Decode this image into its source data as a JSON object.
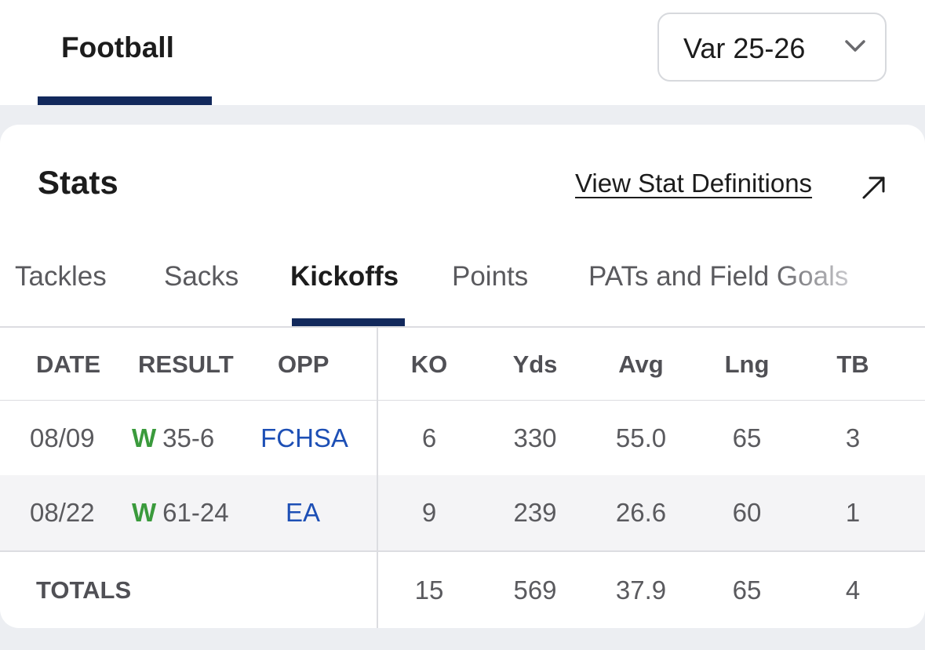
{
  "sport_tab": {
    "label": "Football"
  },
  "season_select": {
    "value": "Var 25-26"
  },
  "stats": {
    "title": "Stats",
    "definitions_link": "View Stat Definitions"
  },
  "tabs": [
    {
      "label": "Tackles",
      "active": false
    },
    {
      "label": "Sacks",
      "active": false
    },
    {
      "label": "Kickoffs",
      "active": true
    },
    {
      "label": "Points",
      "active": false
    },
    {
      "label": "PATs and Field Goals",
      "active": false
    }
  ],
  "table": {
    "headers": [
      "DATE",
      "RESULT",
      "OPP",
      "KO",
      "Yds",
      "Avg",
      "Lng",
      "TB"
    ],
    "rows": [
      {
        "date": "08/09",
        "result_flag": "W",
        "result_score": "35-6",
        "opp": "FCHSA",
        "ko": "6",
        "yds": "330",
        "avg": "55.0",
        "lng": "65",
        "tb": "3"
      },
      {
        "date": "08/22",
        "result_flag": "W",
        "result_score": "61-24",
        "opp": "EA",
        "ko": "9",
        "yds": "239",
        "avg": "26.6",
        "lng": "60",
        "tb": "1"
      }
    ],
    "totals": {
      "label": "TOTALS",
      "ko": "15",
      "yds": "569",
      "avg": "37.9",
      "lng": "65",
      "tb": "4"
    }
  },
  "colors": {
    "accent_navy": "#12295c",
    "win_green": "#3a9a3c",
    "link_blue": "#1d4fb5"
  }
}
